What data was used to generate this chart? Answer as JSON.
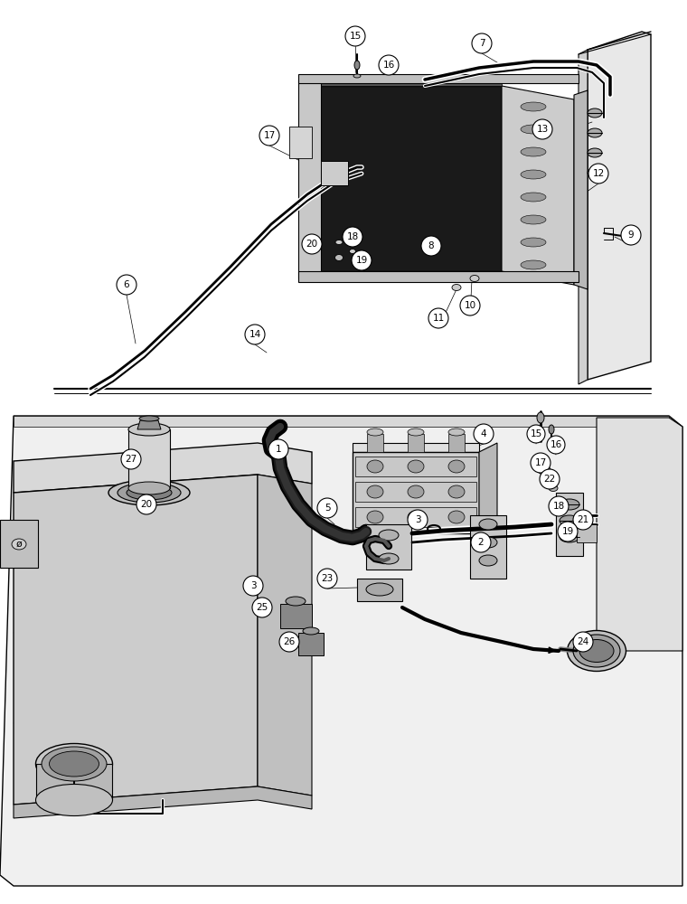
{
  "bg": "#ffffff",
  "lc": "#000000",
  "fig_w": 7.6,
  "fig_h": 10.0,
  "dpi": 100
}
